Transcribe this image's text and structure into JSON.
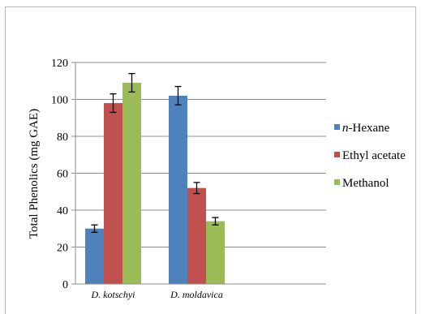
{
  "chart_data": {
    "type": "bar",
    "title": "",
    "ylabel": "Total Phenolics (mg GAE)",
    "xlabel": "",
    "ylim": [
      0,
      120
    ],
    "yticks": [
      0,
      20,
      40,
      60,
      80,
      100,
      120
    ],
    "categories": [
      "D. kotschyi",
      "D. moldavica"
    ],
    "series": [
      {
        "name": "n-Hexane",
        "name_prefix": "n",
        "name_suffix": "-Hexane",
        "color": "#4f81bd",
        "values": [
          30,
          102
        ],
        "errors": [
          2,
          5
        ]
      },
      {
        "name": "Ethyl acetate",
        "color": "#c0504d",
        "values": [
          98,
          52
        ],
        "errors": [
          5,
          3
        ]
      },
      {
        "name": "Methanol",
        "color": "#9bbb59",
        "values": [
          109,
          34
        ],
        "errors": [
          5,
          2
        ]
      }
    ],
    "grid": true,
    "legend_position": "right"
  }
}
